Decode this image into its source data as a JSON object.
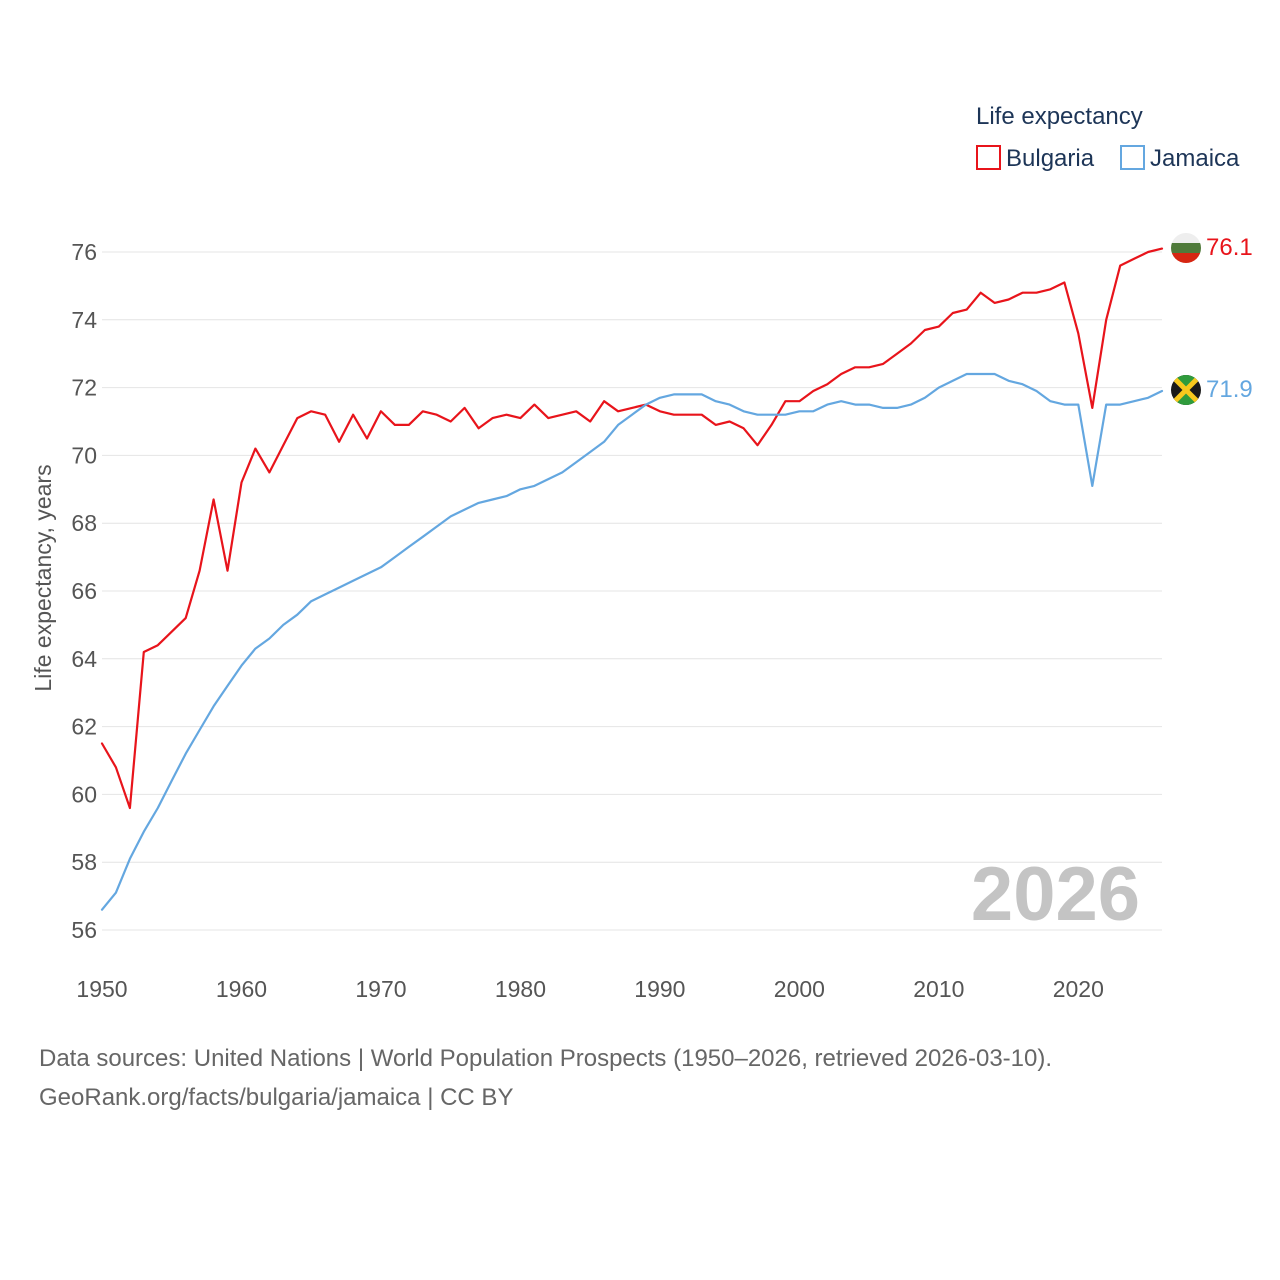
{
  "chart_data": {
    "type": "line",
    "title": "",
    "legend_title": "Life expectancy",
    "legend_position": "top-right",
    "xlabel": "",
    "ylabel": "Life expectancy, years",
    "xlim": [
      1950,
      2026
    ],
    "ylim": [
      55,
      77
    ],
    "x_ticks": [
      1950,
      1960,
      1970,
      1980,
      1990,
      2000,
      2010,
      2020
    ],
    "y_ticks": [
      56,
      58,
      60,
      62,
      64,
      66,
      68,
      70,
      72,
      74,
      76
    ],
    "grid": true,
    "year_watermark": "2026",
    "x": [
      1950,
      1951,
      1952,
      1953,
      1954,
      1955,
      1956,
      1957,
      1958,
      1959,
      1960,
      1961,
      1962,
      1963,
      1964,
      1965,
      1966,
      1967,
      1968,
      1969,
      1970,
      1971,
      1972,
      1973,
      1974,
      1975,
      1976,
      1977,
      1978,
      1979,
      1980,
      1981,
      1982,
      1983,
      1984,
      1985,
      1986,
      1987,
      1988,
      1989,
      1990,
      1991,
      1992,
      1993,
      1994,
      1995,
      1996,
      1997,
      1998,
      1999,
      2000,
      2001,
      2002,
      2003,
      2004,
      2005,
      2006,
      2007,
      2008,
      2009,
      2010,
      2011,
      2012,
      2013,
      2014,
      2015,
      2016,
      2017,
      2018,
      2019,
      2020,
      2021,
      2022,
      2023,
      2024,
      2025,
      2026
    ],
    "series": [
      {
        "name": "Bulgaria",
        "color": "#e8141b",
        "end_label": "76.1",
        "values": [
          61.5,
          60.8,
          59.6,
          64.2,
          64.4,
          64.8,
          65.2,
          66.6,
          68.7,
          66.6,
          69.2,
          70.2,
          69.5,
          70.3,
          71.1,
          71.3,
          71.2,
          70.4,
          71.2,
          70.5,
          71.3,
          70.9,
          70.9,
          71.3,
          71.2,
          71.0,
          71.4,
          70.8,
          71.1,
          71.2,
          71.1,
          71.5,
          71.1,
          71.2,
          71.3,
          71.0,
          71.6,
          71.3,
          71.4,
          71.5,
          71.3,
          71.2,
          71.2,
          71.2,
          70.9,
          71.0,
          70.8,
          70.3,
          70.9,
          71.6,
          71.6,
          71.9,
          72.1,
          72.4,
          72.6,
          72.6,
          72.7,
          73.0,
          73.3,
          73.7,
          73.8,
          74.2,
          74.3,
          74.8,
          74.5,
          74.6,
          74.8,
          74.8,
          74.9,
          75.1,
          73.6,
          71.4,
          74.0,
          75.6,
          75.8,
          76.0,
          76.1
        ]
      },
      {
        "name": "Jamaica",
        "color": "#64a7e0",
        "end_label": "71.9",
        "values": [
          56.6,
          57.1,
          58.1,
          58.9,
          59.6,
          60.4,
          61.2,
          61.9,
          62.6,
          63.2,
          63.8,
          64.3,
          64.6,
          65.0,
          65.3,
          65.7,
          65.9,
          66.1,
          66.3,
          66.5,
          66.7,
          67.0,
          67.3,
          67.6,
          67.9,
          68.2,
          68.4,
          68.6,
          68.7,
          68.8,
          69.0,
          69.1,
          69.3,
          69.5,
          69.8,
          70.1,
          70.4,
          70.9,
          71.2,
          71.5,
          71.7,
          71.8,
          71.8,
          71.8,
          71.6,
          71.5,
          71.3,
          71.2,
          71.2,
          71.2,
          71.3,
          71.3,
          71.5,
          71.6,
          71.5,
          71.5,
          71.4,
          71.4,
          71.5,
          71.7,
          72.0,
          72.2,
          72.4,
          72.4,
          72.4,
          72.2,
          72.1,
          71.9,
          71.6,
          71.5,
          71.5,
          69.1,
          71.5,
          71.5,
          71.6,
          71.7,
          71.9
        ]
      }
    ]
  },
  "footer": {
    "source_line": "Data sources: United Nations | World Population Prospects (1950–2026, retrieved 2026-03-10).",
    "url_line": "GeoRank.org/facts/bulgaria/jamaica | CC BY"
  }
}
